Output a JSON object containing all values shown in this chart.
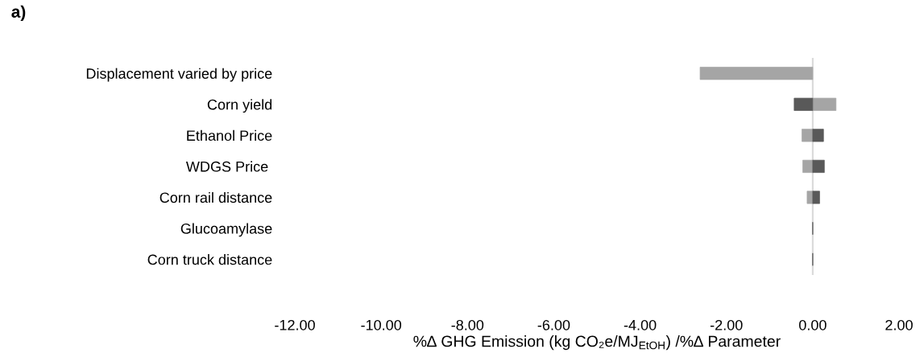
{
  "chart_data": {
    "type": "bar",
    "orientation": "horizontal",
    "stacked": true,
    "title": "a)",
    "xlabel": "%∆ GHG Emission (kg CO₂e/MJ$_{EtOH}$) /%∆ Parameter",
    "categories": [
      "Displacement varied by price",
      "Corn yield",
      "Ethanol Price",
      "WDGS Price ",
      "Corn rail distance",
      "Glucoamylase",
      "Corn truck distance"
    ],
    "series": [
      {
        "color": "#a5a5a5",
        "values": [
          -2.61,
          0.54,
          -0.25,
          -0.23,
          -0.13,
          0,
          0
        ]
      },
      {
        "color": "#595959",
        "values": [
          null,
          -0.43,
          0.25,
          0.27,
          0.16,
          0,
          0
        ]
      }
    ],
    "xlim": [
      -12,
      2
    ],
    "xticks": [
      {
        "value": -12,
        "label": "-12.00"
      },
      {
        "value": -10,
        "label": "-10.00"
      },
      {
        "value": -8,
        "label": "-8.00"
      },
      {
        "value": -6,
        "label": "-6.00"
      },
      {
        "value": -4,
        "label": "-4.00"
      },
      {
        "value": -2,
        "label": "-2.00"
      },
      {
        "value": 0,
        "label": "0.00"
      },
      {
        "value": 2,
        "label": "2.00"
      }
    ],
    "ref_lines": [
      {
        "axis": "x",
        "value": 0,
        "color": "#d9d9d9"
      }
    ],
    "grid": false,
    "legend": false
  }
}
